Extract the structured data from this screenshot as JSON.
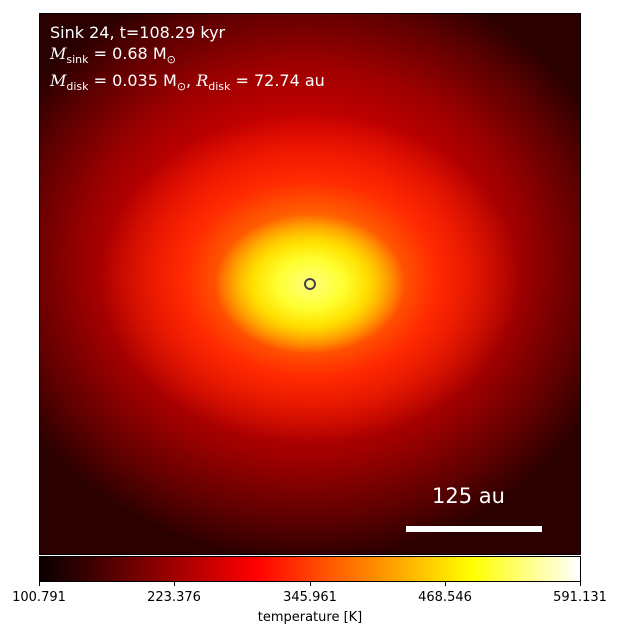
{
  "info": {
    "sink_line": "Sink 24, t=108.29 kyr",
    "msink_symbol": "M",
    "msink_sub": "sink",
    "msink_value": " = 0.68 M",
    "msink_sun_sub": "⊙",
    "mdisk_symbol": "M",
    "mdisk_sub": "disk",
    "mdisk_value": " = 0.035 M",
    "mdisk_sun_sub": "⊙",
    "rdisk_sep": ", ",
    "rdisk_symbol": "R",
    "rdisk_sub": "disk",
    "rdisk_value": " = 72.74 au"
  },
  "scale_bar": {
    "label": "125 au"
  },
  "colorbar": {
    "title": "temperature [K]",
    "tick_labels": [
      "100.791",
      "223.376",
      "345.961",
      "468.546",
      "591.131"
    ],
    "colormap": "hot",
    "stops": [
      "#0a0000",
      "#400000",
      "#800000",
      "#c00000",
      "#ff0000",
      "#ff4000",
      "#ff8000",
      "#ffc000",
      "#ffff00",
      "#ffff80",
      "#ffffff"
    ]
  }
}
